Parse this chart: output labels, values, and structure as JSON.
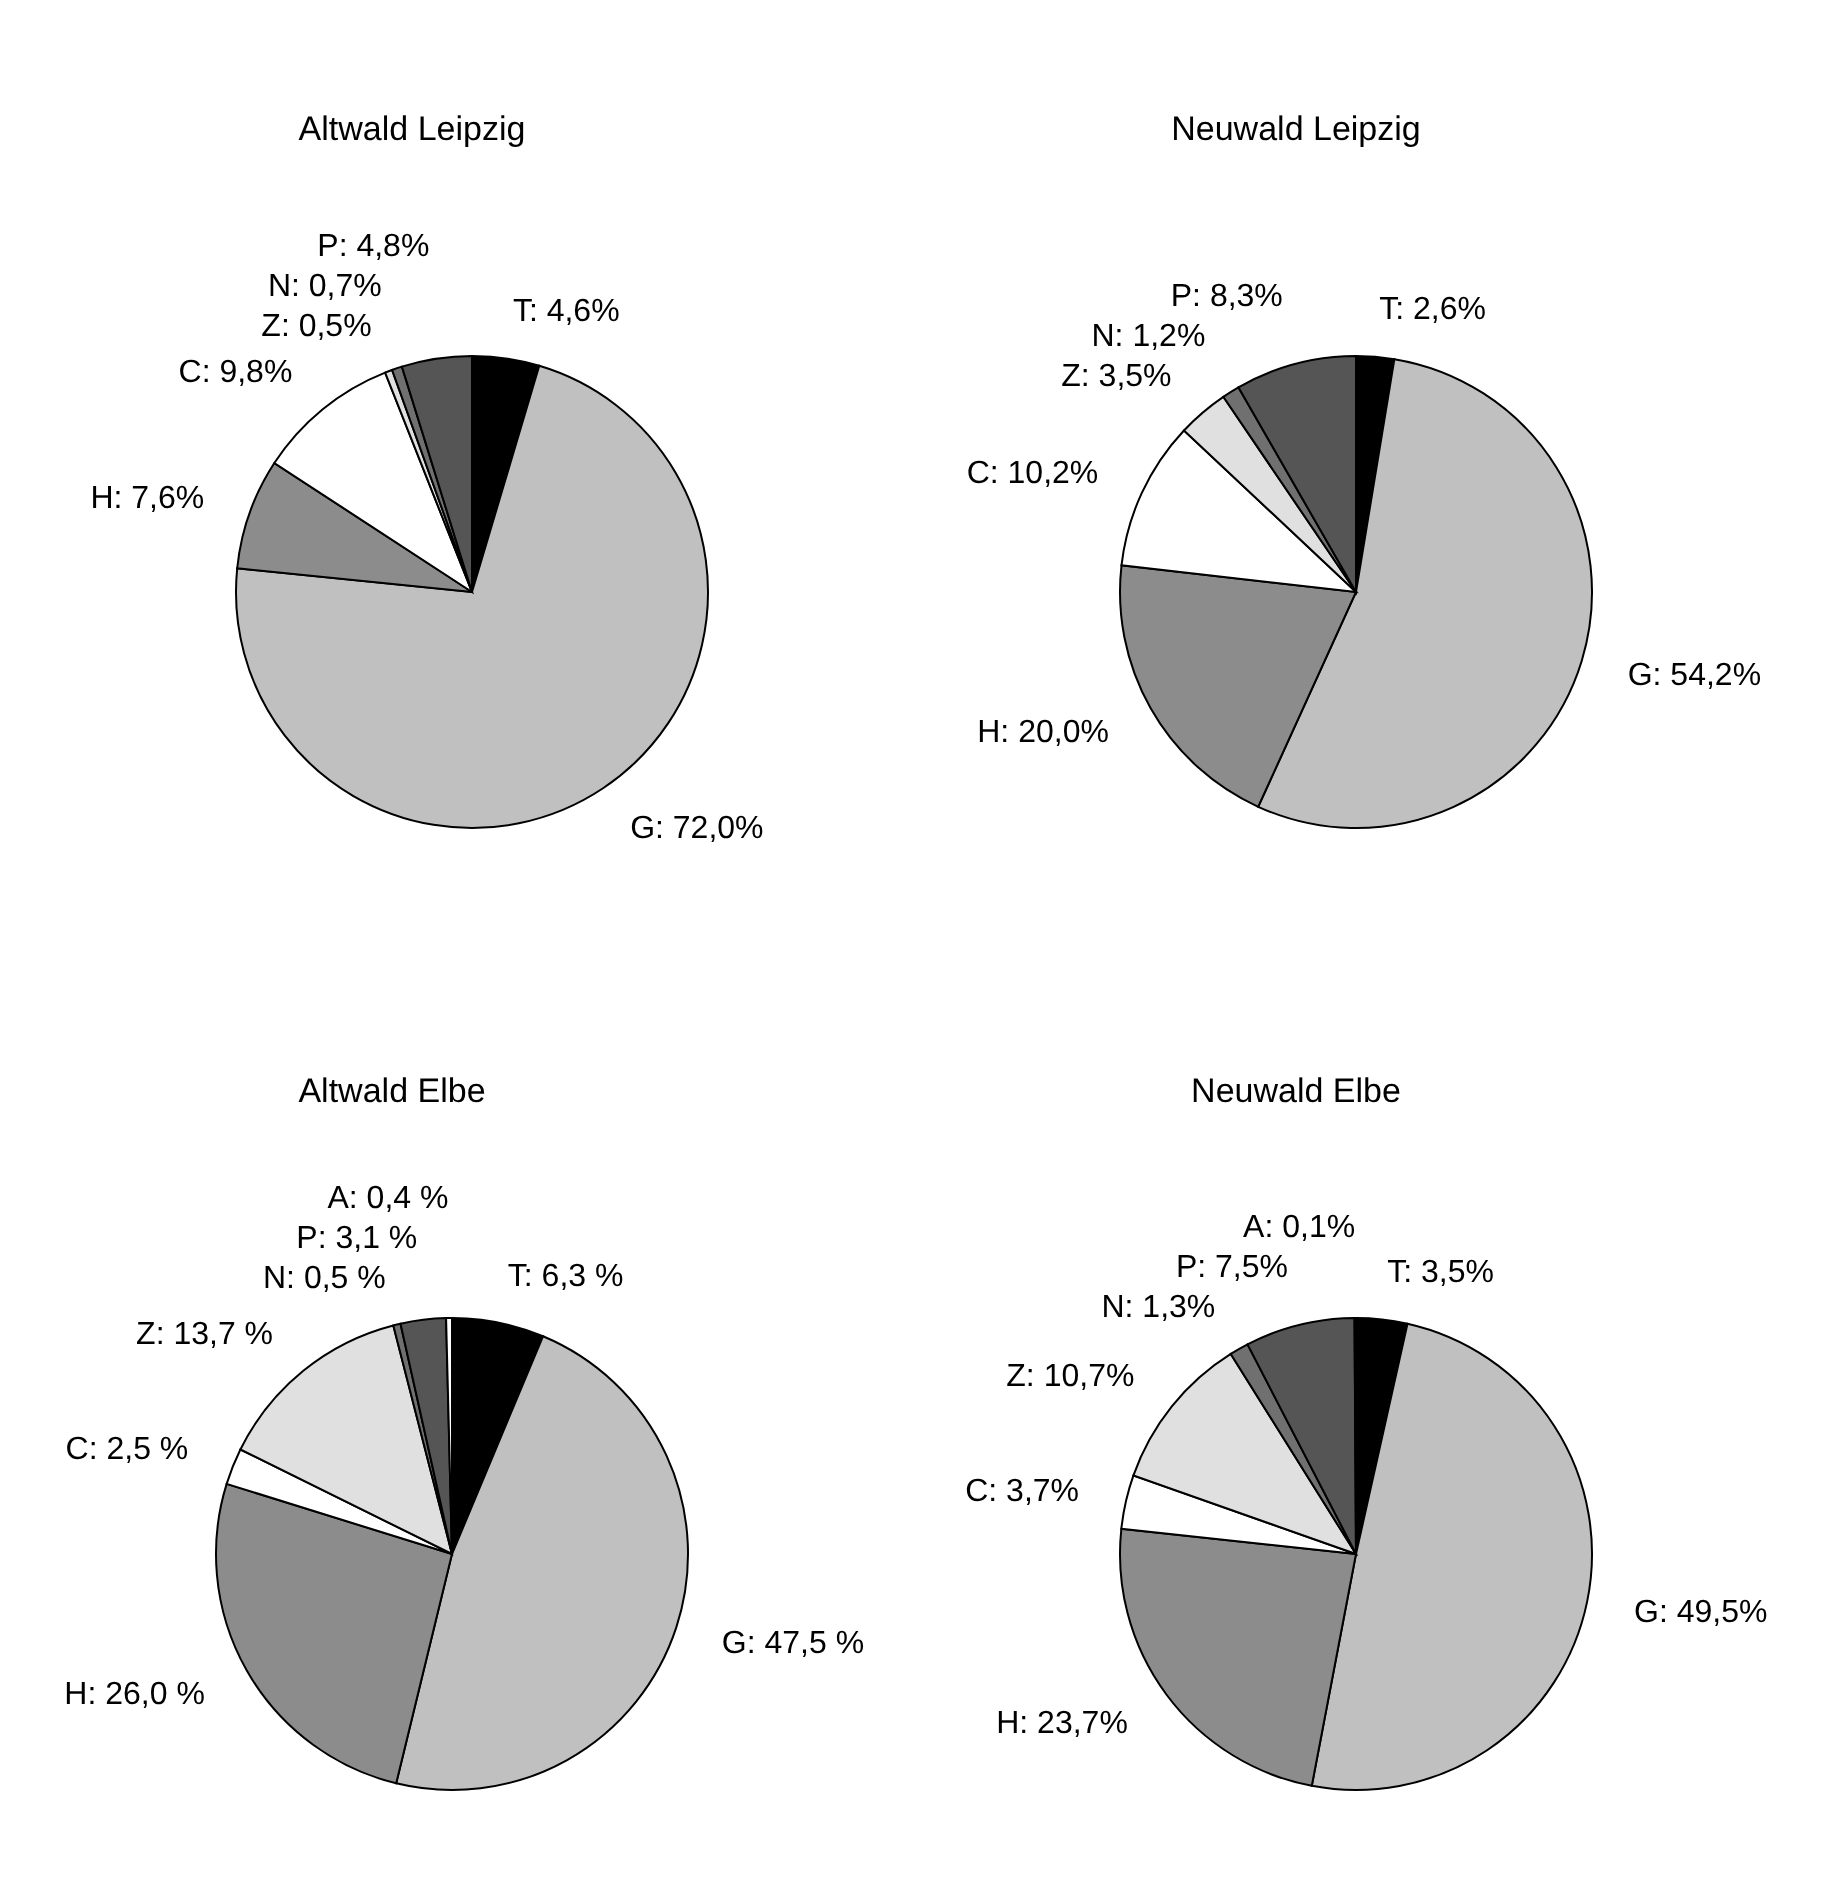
{
  "chart_data": [
    {
      "type": "pie",
      "title": "Altwald Leipzig",
      "categories": [
        "T",
        "G",
        "H",
        "C",
        "Z",
        "N",
        "P"
      ],
      "values": [
        4.6,
        72.0,
        7.6,
        9.8,
        0.5,
        0.7,
        4.8
      ],
      "colors": [
        "#000000",
        "#c0c0c0",
        "#8c8c8c",
        "#ffffff",
        "#e0e0e0",
        "#707070",
        "#555555"
      ],
      "value_labels": [
        "4,6%",
        "72,0%",
        "7,6%",
        "9,8%",
        "0,5%",
        "0,7%",
        "4,8%"
      ]
    },
    {
      "type": "pie",
      "title": "Neuwald Leipzig",
      "categories": [
        "T",
        "G",
        "H",
        "C",
        "Z",
        "N",
        "P"
      ],
      "values": [
        2.6,
        54.2,
        20.0,
        10.2,
        3.5,
        1.2,
        8.3
      ],
      "colors": [
        "#000000",
        "#c0c0c0",
        "#8c8c8c",
        "#ffffff",
        "#e0e0e0",
        "#707070",
        "#555555"
      ],
      "value_labels": [
        "2,6%",
        "54,2%",
        "20,0%",
        "10,2%",
        "3,5%",
        "1,2%",
        "8,3%"
      ]
    },
    {
      "type": "pie",
      "title": "Altwald Elbe",
      "categories": [
        "T",
        "G",
        "H",
        "C",
        "Z",
        "N",
        "P",
        "A"
      ],
      "values": [
        6.3,
        47.5,
        26.0,
        2.5,
        13.7,
        0.5,
        3.1,
        0.4
      ],
      "colors": [
        "#000000",
        "#c0c0c0",
        "#8c8c8c",
        "#ffffff",
        "#e0e0e0",
        "#707070",
        "#555555",
        "#ffffff"
      ],
      "value_labels": [
        "6,3 %",
        "47,5 %",
        "26,0 %",
        "2,5 %",
        "13,7 %",
        "0,5 %",
        "3,1 %",
        "0,4 %"
      ]
    },
    {
      "type": "pie",
      "title": "Neuwald Elbe",
      "categories": [
        "T",
        "G",
        "H",
        "C",
        "Z",
        "N",
        "P",
        "A"
      ],
      "values": [
        3.5,
        49.5,
        23.7,
        3.7,
        10.7,
        1.3,
        7.5,
        0.1
      ],
      "colors": [
        "#000000",
        "#c0c0c0",
        "#8c8c8c",
        "#ffffff",
        "#e0e0e0",
        "#707070",
        "#555555",
        "#ffffff"
      ],
      "value_labels": [
        "3,5%",
        "49,5%",
        "23,7%",
        "3,7%",
        "10,7%",
        "1,3%",
        "7,5%",
        "0,1%"
      ]
    }
  ]
}
